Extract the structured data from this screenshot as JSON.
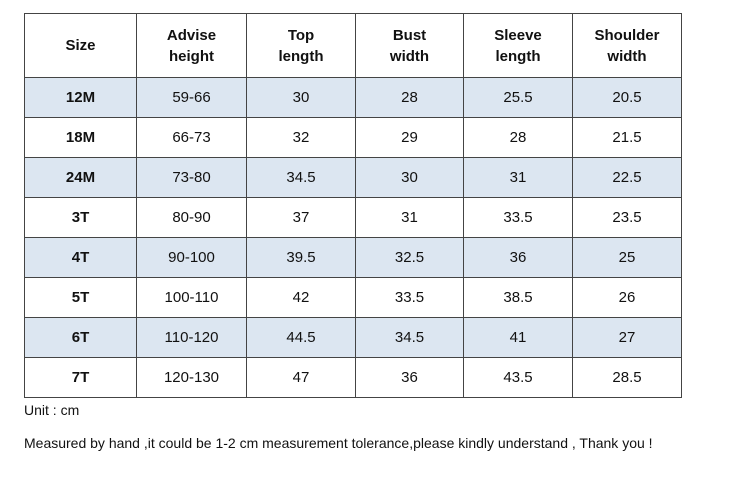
{
  "table": {
    "header": [
      "Size",
      "Advise height",
      "Top length",
      "Bust width",
      "Sleeve length",
      "Shoulder width"
    ],
    "rows": [
      [
        "12M",
        "59-66",
        "30",
        "28",
        "25.5",
        "20.5"
      ],
      [
        "18M",
        "66-73",
        "32",
        "29",
        "28",
        "21.5"
      ],
      [
        "24M",
        "73-80",
        "34.5",
        "30",
        "31",
        "22.5"
      ],
      [
        "3T",
        "80-90",
        "37",
        "31",
        "33.5",
        "23.5"
      ],
      [
        "4T",
        "90-100",
        "39.5",
        "32.5",
        "36",
        "25"
      ],
      [
        "5T",
        "100-110",
        "42",
        "33.5",
        "38.5",
        "26"
      ],
      [
        "6T",
        "110-120",
        "44.5",
        "34.5",
        "41",
        "27"
      ],
      [
        "7T",
        "120-130",
        "47",
        "36",
        "43.5",
        "28.5"
      ]
    ]
  },
  "notes": {
    "unit": "Unit : cm",
    "disclaimer": "Measured by hand ,it could be 1-2 cm measurement tolerance,please kindly understand , Thank you !"
  }
}
